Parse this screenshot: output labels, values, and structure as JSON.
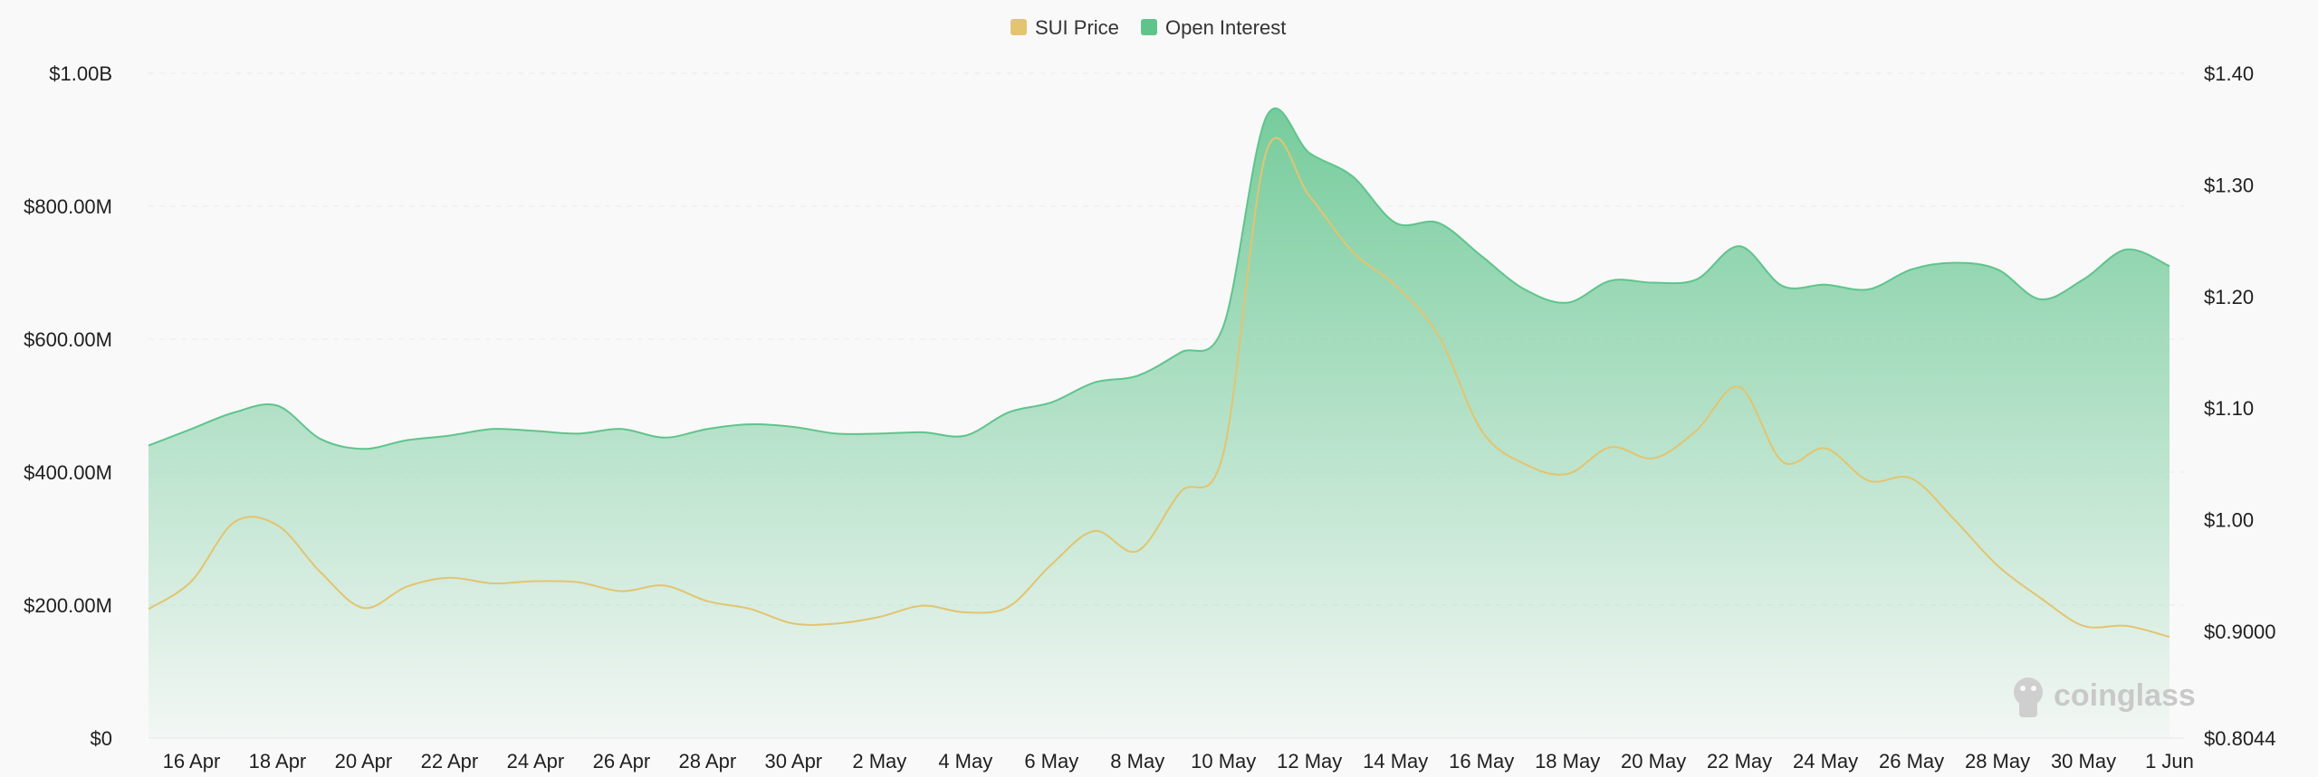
{
  "chart_data": {
    "type": "area",
    "legend_position": "top-center",
    "grid": true,
    "x": [
      "15 Apr",
      "16 Apr",
      "17 Apr",
      "18 Apr",
      "19 Apr",
      "20 Apr",
      "21 Apr",
      "22 Apr",
      "23 Apr",
      "24 Apr",
      "25 Apr",
      "26 Apr",
      "27 Apr",
      "28 Apr",
      "29 Apr",
      "30 Apr",
      "1 May",
      "2 May",
      "3 May",
      "4 May",
      "5 May",
      "6 May",
      "7 May",
      "8 May",
      "9 May",
      "10 May",
      "11 May",
      "12 May",
      "13 May",
      "14 May",
      "15 May",
      "16 May",
      "17 May",
      "18 May",
      "19 May",
      "20 May",
      "21 May",
      "22 May",
      "23 May",
      "24 May",
      "25 May",
      "26 May",
      "27 May",
      "28 May",
      "29 May",
      "30 May",
      "31 May",
      "1 Jun"
    ],
    "x_tick_labels": [
      "16 Apr",
      "18 Apr",
      "20 Apr",
      "22 Apr",
      "24 Apr",
      "26 Apr",
      "28 Apr",
      "30 Apr",
      "2 May",
      "4 May",
      "6 May",
      "8 May",
      "10 May",
      "12 May",
      "14 May",
      "16 May",
      "18 May",
      "20 May",
      "22 May",
      "24 May",
      "26 May",
      "28 May",
      "30 May",
      "1 Jun"
    ],
    "y_left": {
      "ylim": [
        0,
        1000000000
      ],
      "tick_labels": [
        "$0",
        "$200.00M",
        "$400.00M",
        "$600.00M",
        "$800.00M",
        "$1.00B"
      ]
    },
    "y_right": {
      "ylim": [
        0.8044,
        1.4
      ],
      "tick_labels": [
        "$0.8044",
        "$0.9000",
        "$1.00",
        "$1.10",
        "$1.20",
        "$1.30",
        "$1.40"
      ]
    },
    "series": [
      {
        "name": "SUI Price",
        "axis": "right",
        "color": "#e3c46f",
        "values": [
          0.92,
          0.945,
          0.998,
          0.995,
          0.953,
          0.921,
          0.94,
          0.948,
          0.943,
          0.945,
          0.944,
          0.936,
          0.941,
          0.927,
          0.92,
          0.907,
          0.907,
          0.913,
          0.923,
          0.917,
          0.922,
          0.96,
          0.99,
          0.972,
          1.025,
          1.06,
          1.33,
          1.29,
          1.24,
          1.21,
          1.165,
          1.08,
          1.05,
          1.041,
          1.065,
          1.055,
          1.08,
          1.119,
          1.052,
          1.064,
          1.035,
          1.037,
          1.0,
          0.959,
          0.93,
          0.905,
          0.905,
          0.895
        ]
      },
      {
        "name": "Open Interest",
        "axis": "left",
        "color": "#5fc48c",
        "values": [
          440000000,
          465000000,
          490000000,
          500000000,
          450000000,
          435000000,
          448000000,
          455000000,
          465000000,
          462000000,
          458000000,
          465000000,
          452000000,
          465000000,
          472000000,
          468000000,
          458000000,
          458000000,
          460000000,
          455000000,
          490000000,
          505000000,
          535000000,
          545000000,
          580000000,
          620000000,
          935000000,
          880000000,
          845000000,
          775000000,
          775000000,
          725000000,
          675000000,
          655000000,
          688000000,
          685000000,
          690000000,
          740000000,
          680000000,
          682000000,
          675000000,
          705000000,
          715000000,
          705000000,
          660000000,
          690000000,
          735000000,
          710000000
        ]
      }
    ]
  },
  "watermark": "coinglass"
}
